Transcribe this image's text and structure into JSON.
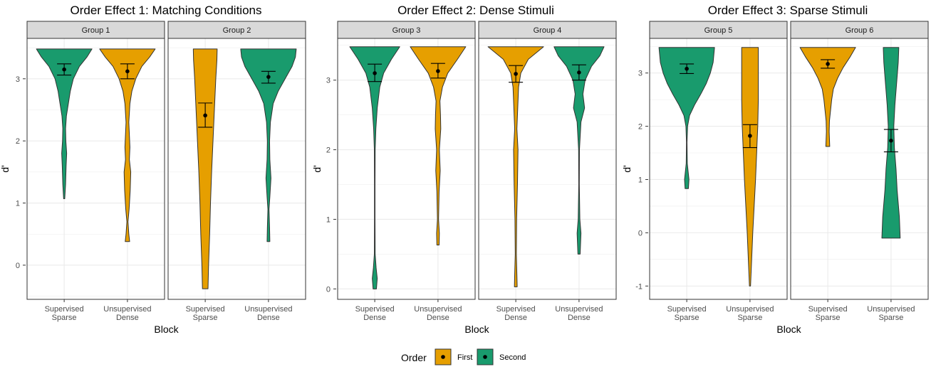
{
  "colors": {
    "first": "#E69F00",
    "second": "#199B6D",
    "strip": "#D9D9D9",
    "outline": "#333333",
    "grid": "#EBEBEB"
  },
  "legend": {
    "title": "Order",
    "items": [
      {
        "name": "First",
        "color": "#E69F00"
      },
      {
        "name": "Second",
        "color": "#199B6D"
      }
    ]
  },
  "chart_data": [
    {
      "type": "violin",
      "title": "Order Effect 1: Matching Conditions",
      "xlabel": "Block",
      "ylabel": "d'",
      "ylim": [
        -0.55,
        3.65
      ],
      "yticks": [
        0,
        1,
        2,
        3
      ],
      "facets": [
        {
          "strip": "Group 1",
          "violins": [
            {
              "cat": [
                "Supervised",
                "Sparse"
              ],
              "order": "Second",
              "mean": 3.15,
              "lo": 3.06,
              "hi": 3.24,
              "min": 1.07,
              "max": 3.48,
              "profile": [
                [
                  1.07,
                  0.02
                ],
                [
                  1.3,
                  0.05
                ],
                [
                  1.6,
                  0.07
                ],
                [
                  1.8,
                  0.09
                ],
                [
                  2.0,
                  0.06
                ],
                [
                  2.2,
                  0.05
                ],
                [
                  2.4,
                  0.08
                ],
                [
                  2.6,
                  0.15
                ],
                [
                  2.8,
                  0.22
                ],
                [
                  3.0,
                  0.33
                ],
                [
                  3.2,
                  0.55
                ],
                [
                  3.35,
                  0.82
                ],
                [
                  3.48,
                  1.0
                ]
              ]
            },
            {
              "cat": [
                "Unsupervised",
                "Dense"
              ],
              "order": "First",
              "mean": 3.12,
              "lo": 3.0,
              "hi": 3.24,
              "min": 0.38,
              "max": 3.48,
              "profile": [
                [
                  0.38,
                  0.08
                ],
                [
                  0.5,
                  0.05
                ],
                [
                  0.7,
                  0.02
                ],
                [
                  0.9,
                  0.06
                ],
                [
                  1.2,
                  0.1
                ],
                [
                  1.5,
                  0.12
                ],
                [
                  1.7,
                  0.07
                ],
                [
                  1.9,
                  0.09
                ],
                [
                  2.3,
                  0.05
                ],
                [
                  2.6,
                  0.09
                ],
                [
                  2.8,
                  0.16
                ],
                [
                  3.0,
                  0.3
                ],
                [
                  3.2,
                  0.52
                ],
                [
                  3.35,
                  0.8
                ],
                [
                  3.48,
                  1.0
                ]
              ]
            }
          ]
        },
        {
          "strip": "Group 2",
          "violins": [
            {
              "cat": [
                "Supervised",
                "Sparse"
              ],
              "order": "First",
              "mean": 2.41,
              "lo": 2.22,
              "hi": 2.61,
              "min": -0.38,
              "max": 3.48,
              "profile": [
                [
                  -0.38,
                  0.1
                ],
                [
                  0.0,
                  0.12
                ],
                [
                  0.5,
                  0.16
                ],
                [
                  1.0,
                  0.19
                ],
                [
                  1.5,
                  0.23
                ],
                [
                  2.0,
                  0.28
                ],
                [
                  2.5,
                  0.33
                ],
                [
                  3.0,
                  0.38
                ],
                [
                  3.3,
                  0.42
                ],
                [
                  3.48,
                  0.43
                ]
              ]
            },
            {
              "cat": [
                "Unsupervised",
                "Dense"
              ],
              "order": "Second",
              "mean": 3.03,
              "lo": 2.93,
              "hi": 3.12,
              "min": 0.38,
              "max": 3.48,
              "profile": [
                [
                  0.38,
                  0.05
                ],
                [
                  0.6,
                  0.04
                ],
                [
                  0.9,
                  0.02
                ],
                [
                  1.1,
                  0.05
                ],
                [
                  1.4,
                  0.09
                ],
                [
                  1.7,
                  0.05
                ],
                [
                  2.0,
                  0.04
                ],
                [
                  2.3,
                  0.07
                ],
                [
                  2.6,
                  0.17
                ],
                [
                  2.8,
                  0.35
                ],
                [
                  3.0,
                  0.6
                ],
                [
                  3.2,
                  0.85
                ],
                [
                  3.35,
                  0.97
                ],
                [
                  3.48,
                  1.0
                ]
              ]
            }
          ]
        }
      ]
    },
    {
      "type": "violin",
      "title": "Order Effect 2: Dense Stimuli",
      "xlabel": "Block",
      "ylabel": "d'",
      "ylim": [
        -0.15,
        3.6
      ],
      "yticks": [
        0,
        1,
        2,
        3
      ],
      "facets": [
        {
          "strip": "Group 3",
          "violins": [
            {
              "cat": [
                "Supervised",
                "Dense"
              ],
              "order": "Second",
              "mean": 3.1,
              "lo": 2.98,
              "hi": 3.23,
              "min": 0.0,
              "max": 3.48,
              "profile": [
                [
                  0.0,
                  0.06
                ],
                [
                  0.15,
                  0.09
                ],
                [
                  0.3,
                  0.05
                ],
                [
                  0.5,
                  0.015
                ],
                [
                  1.0,
                  0.01
                ],
                [
                  1.5,
                  0.01
                ],
                [
                  2.0,
                  0.015
                ],
                [
                  2.3,
                  0.04
                ],
                [
                  2.6,
                  0.09
                ],
                [
                  2.9,
                  0.18
                ],
                [
                  3.1,
                  0.32
                ],
                [
                  3.3,
                  0.6
                ],
                [
                  3.48,
                  0.9
                ]
              ]
            },
            {
              "cat": [
                "Unsupervised",
                "Dense"
              ],
              "order": "First",
              "mean": 3.13,
              "lo": 3.03,
              "hi": 3.24,
              "min": 0.63,
              "max": 3.48,
              "profile": [
                [
                  0.63,
                  0.04
                ],
                [
                  0.8,
                  0.05
                ],
                [
                  1.0,
                  0.02
                ],
                [
                  1.4,
                  0.04
                ],
                [
                  1.7,
                  0.08
                ],
                [
                  2.0,
                  0.05
                ],
                [
                  2.3,
                  0.1
                ],
                [
                  2.5,
                  0.09
                ],
                [
                  2.7,
                  0.07
                ],
                [
                  2.9,
                  0.16
                ],
                [
                  3.1,
                  0.35
                ],
                [
                  3.3,
                  0.7
                ],
                [
                  3.48,
                  1.0
                ]
              ]
            }
          ]
        },
        {
          "strip": "Group 4",
          "violins": [
            {
              "cat": [
                "Supervised",
                "Dense"
              ],
              "order": "First",
              "mean": 3.09,
              "lo": 2.97,
              "hi": 3.21,
              "min": 0.03,
              "max": 3.48,
              "profile": [
                [
                  0.03,
                  0.05
                ],
                [
                  0.2,
                  0.04
                ],
                [
                  0.5,
                  0.02
                ],
                [
                  1.0,
                  0.03
                ],
                [
                  1.5,
                  0.06
                ],
                [
                  2.0,
                  0.08
                ],
                [
                  2.3,
                  0.04
                ],
                [
                  2.6,
                  0.07
                ],
                [
                  2.9,
                  0.1
                ],
                [
                  3.1,
                  0.18
                ],
                [
                  3.3,
                  0.45
                ],
                [
                  3.48,
                  1.0
                ]
              ]
            },
            {
              "cat": [
                "Unsupervised",
                "Dense"
              ],
              "order": "Second",
              "mean": 3.11,
              "lo": 3.0,
              "hi": 3.22,
              "min": 0.5,
              "max": 3.48,
              "profile": [
                [
                  0.5,
                  0.04
                ],
                [
                  0.8,
                  0.07
                ],
                [
                  1.0,
                  0.03
                ],
                [
                  1.5,
                  0.01
                ],
                [
                  2.0,
                  0.015
                ],
                [
                  2.4,
                  0.07
                ],
                [
                  2.6,
                  0.2
                ],
                [
                  2.8,
                  0.14
                ],
                [
                  3.0,
                  0.22
                ],
                [
                  3.2,
                  0.45
                ],
                [
                  3.35,
                  0.75
                ],
                [
                  3.48,
                  0.9
                ]
              ]
            }
          ]
        }
      ]
    },
    {
      "type": "violin",
      "title": "Order Effect 3: Sparse Stimuli",
      "xlabel": "Block",
      "ylabel": "d'",
      "ylim": [
        -1.25,
        3.65
      ],
      "yticks": [
        -1,
        0,
        1,
        2,
        3
      ],
      "facets": [
        {
          "strip": "Group 5",
          "violins": [
            {
              "cat": [
                "Supervised",
                "Sparse"
              ],
              "order": "Second",
              "mean": 3.08,
              "lo": 2.99,
              "hi": 3.17,
              "min": 0.83,
              "max": 3.48,
              "profile": [
                [
                  0.83,
                  0.06
                ],
                [
                  1.0,
                  0.08
                ],
                [
                  1.3,
                  0.02
                ],
                [
                  1.7,
                  0.01
                ],
                [
                  2.0,
                  0.03
                ],
                [
                  2.2,
                  0.1
                ],
                [
                  2.4,
                  0.28
                ],
                [
                  2.6,
                  0.5
                ],
                [
                  2.8,
                  0.7
                ],
                [
                  3.0,
                  0.85
                ],
                [
                  3.2,
                  0.95
                ],
                [
                  3.48,
                  1.0
                ]
              ]
            },
            {
              "cat": [
                "Unsupervised",
                "Sparse"
              ],
              "order": "First",
              "mean": 1.82,
              "lo": 1.6,
              "hi": 2.03,
              "min": -1.0,
              "max": 3.48,
              "profile": [
                [
                  -1.0,
                  0.02
                ],
                [
                  -0.5,
                  0.06
                ],
                [
                  0.0,
                  0.1
                ],
                [
                  0.5,
                  0.15
                ],
                [
                  1.0,
                  0.2
                ],
                [
                  1.5,
                  0.24
                ],
                [
                  2.0,
                  0.28
                ],
                [
                  2.5,
                  0.3
                ],
                [
                  3.0,
                  0.3
                ],
                [
                  3.48,
                  0.3
                ]
              ]
            }
          ]
        },
        {
          "strip": "Group 6",
          "violins": [
            {
              "cat": [
                "Supervised",
                "Sparse"
              ],
              "order": "First",
              "mean": 3.17,
              "lo": 3.09,
              "hi": 3.25,
              "min": 1.62,
              "max": 3.48,
              "profile": [
                [
                  1.62,
                  0.07
                ],
                [
                  1.9,
                  0.05
                ],
                [
                  2.1,
                  0.06
                ],
                [
                  2.3,
                  0.1
                ],
                [
                  2.5,
                  0.14
                ],
                [
                  2.7,
                  0.2
                ],
                [
                  2.9,
                  0.35
                ],
                [
                  3.1,
                  0.55
                ],
                [
                  3.3,
                  0.8
                ],
                [
                  3.48,
                  1.0
                ]
              ]
            },
            {
              "cat": [
                "Unsupervised",
                "Sparse"
              ],
              "order": "Second",
              "mean": 1.73,
              "lo": 1.52,
              "hi": 1.94,
              "min": -0.1,
              "max": 3.48,
              "profile": [
                [
                  -0.1,
                  0.33
                ],
                [
                  0.3,
                  0.3
                ],
                [
                  0.8,
                  0.22
                ],
                [
                  1.2,
                  0.18
                ],
                [
                  1.6,
                  0.12
                ],
                [
                  2.0,
                  0.1
                ],
                [
                  2.4,
                  0.14
                ],
                [
                  2.8,
                  0.2
                ],
                [
                  3.2,
                  0.26
                ],
                [
                  3.48,
                  0.28
                ]
              ]
            }
          ]
        }
      ]
    }
  ]
}
